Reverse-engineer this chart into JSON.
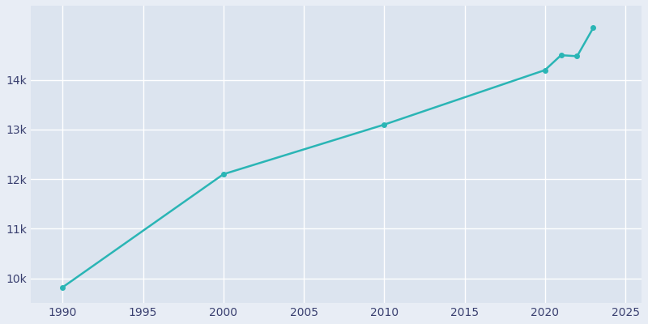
{
  "years": [
    1990,
    2000,
    2010,
    2020,
    2021,
    2022,
    2023
  ],
  "population": [
    9820,
    12100,
    13100,
    14200,
    14500,
    14480,
    15050
  ],
  "line_color": "#2ab5b5",
  "bg_color": "#e8edf5",
  "plot_bg_color": "#dce4ef",
  "grid_color": "#ffffff",
  "tick_color": "#3a4070",
  "xlim": [
    1988,
    2026
  ],
  "ylim": [
    9500,
    15500
  ],
  "yticks": [
    10000,
    11000,
    12000,
    13000,
    14000
  ],
  "ytick_labels": [
    "10k",
    "11k",
    "12k",
    "13k",
    "14k"
  ],
  "xticks": [
    1990,
    1995,
    2000,
    2005,
    2010,
    2015,
    2020,
    2025
  ],
  "linewidth": 1.8,
  "marker": "o",
  "markersize": 4
}
